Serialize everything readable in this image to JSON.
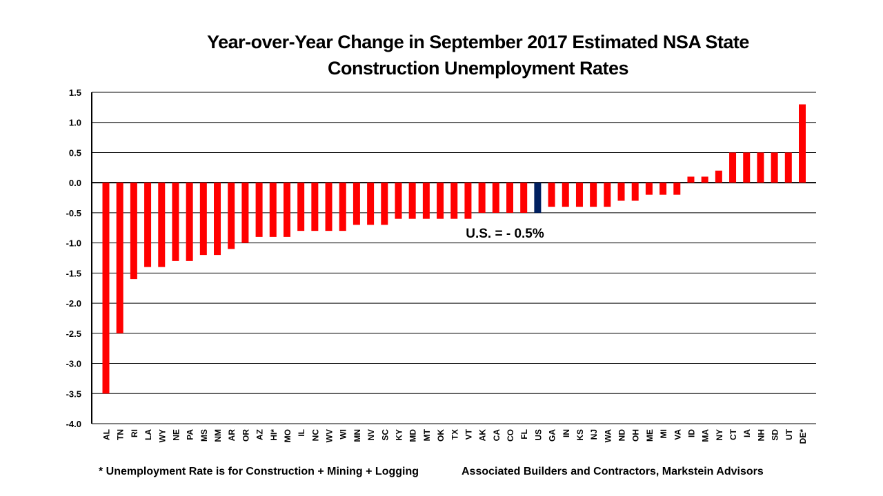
{
  "chart_data": {
    "type": "bar",
    "title": "Year-over-Year Change in September 2017 Estimated NSA State Construction Unemployment Rates",
    "categories": [
      "AL",
      "TN",
      "RI",
      "LA",
      "WY",
      "NE",
      "PA",
      "MS",
      "NM",
      "AR",
      "OR",
      "AZ",
      "HI*",
      "MO",
      "IL",
      "NC",
      "WV",
      "WI",
      "MN",
      "NV",
      "SC",
      "KY",
      "MD",
      "MT",
      "OK",
      "TX",
      "VT",
      "AK",
      "CA",
      "CO",
      "FL",
      "US",
      "GA",
      "IN",
      "KS",
      "NJ",
      "WA",
      "ND",
      "OH",
      "ME",
      "MI",
      "VA",
      "ID",
      "MA",
      "NY",
      "CT",
      "IA",
      "NH",
      "SD",
      "UT",
      "DE*"
    ],
    "values": [
      -3.5,
      -2.5,
      -1.6,
      -1.4,
      -1.4,
      -1.3,
      -1.3,
      -1.2,
      -1.2,
      -1.1,
      -1.0,
      -0.9,
      -0.9,
      -0.9,
      -0.8,
      -0.8,
      -0.8,
      -0.8,
      -0.7,
      -0.7,
      -0.7,
      -0.6,
      -0.6,
      -0.6,
      -0.6,
      -0.6,
      -0.6,
      -0.5,
      -0.5,
      -0.5,
      -0.5,
      -0.5,
      -0.4,
      -0.4,
      -0.4,
      -0.4,
      -0.4,
      -0.3,
      -0.3,
      -0.2,
      -0.2,
      -0.2,
      0.1,
      0.1,
      0.2,
      0.5,
      0.5,
      0.5,
      0.5,
      0.5,
      1.3
    ],
    "ylim": [
      -4.0,
      1.5
    ],
    "yticks": [
      "1.5",
      "1.0",
      "0.5",
      "0.0",
      "-0.5",
      "-1.0",
      "-1.5",
      "-2.0",
      "-2.5",
      "-3.0",
      "-3.5",
      "-4.0"
    ],
    "grid": true,
    "colors": {
      "bar": "#ff0000",
      "highlight": "#002060"
    },
    "highlight_category": "US",
    "annotation": "U.S. = - 0.5%"
  },
  "footnote": "* Unemployment Rate is for Construction + Mining + Logging",
  "source": "Associated Builders and Contractors, Markstein Advisors"
}
